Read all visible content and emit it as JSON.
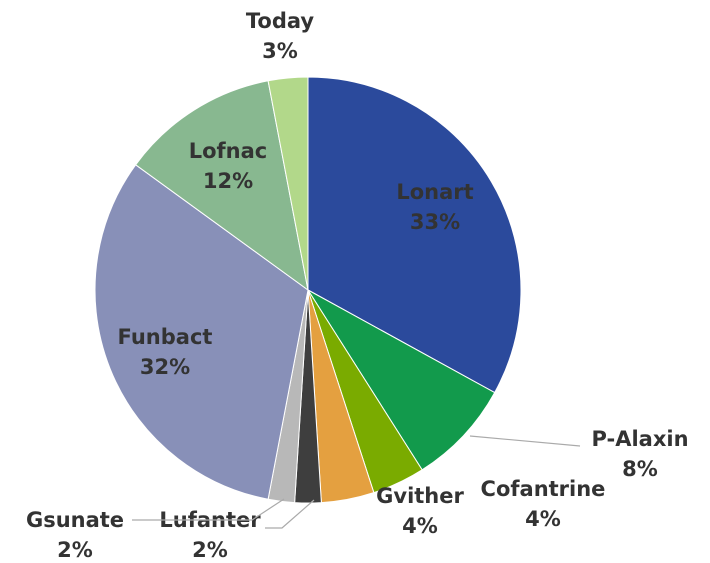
{
  "chart_data": {
    "type": "pie",
    "categories": [
      "Lonart",
      "P-Alaxin",
      "Cofantrine",
      "Gvither",
      "Lufanter",
      "Gsunate",
      "Funbact",
      "Lofnac",
      "Today"
    ],
    "values": [
      33,
      8,
      4,
      4,
      2,
      2,
      32,
      12,
      3
    ],
    "value_labels": [
      "33%",
      "8%",
      "4%",
      "4%",
      "2%",
      "2%",
      "32%",
      "12%",
      "3%"
    ],
    "colors": [
      "#2b4a9c",
      "#129a4c",
      "#7aab00",
      "#e4a040",
      "#3e3e3e",
      "#b8b8b8",
      "#8890b8",
      "#88b890",
      "#b2d88a"
    ]
  }
}
